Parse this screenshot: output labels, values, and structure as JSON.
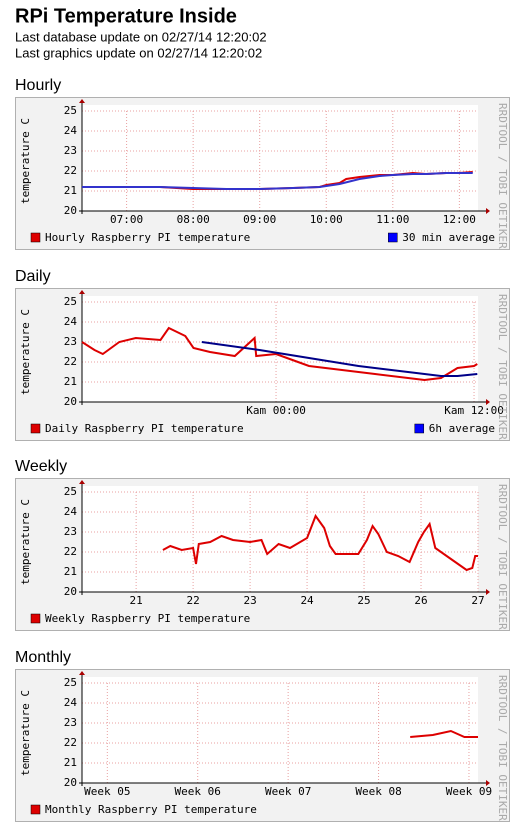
{
  "header": {
    "title": "RPi Temperature Inside",
    "lines": [
      "Last database update on 02/27/14 12:20:02",
      "Last graphics update on 02/27/14 12:20:02"
    ]
  },
  "chart_data": [
    {
      "type": "line",
      "title": "Hourly",
      "ylabel": "temperature C",
      "watermark": "RRDTOOL / TOBI OETIKER",
      "xlim": [
        6.33,
        12.28
      ],
      "xticks": [
        {
          "value": 7,
          "label": "07:00"
        },
        {
          "value": 8,
          "label": "08:00"
        },
        {
          "value": 9,
          "label": "09:00"
        },
        {
          "value": 10,
          "label": "10:00"
        },
        {
          "value": 11,
          "label": "11:00"
        },
        {
          "value": 12,
          "label": "12:00"
        }
      ],
      "ylim": [
        20,
        25
      ],
      "yticks": [
        20,
        21,
        22,
        23,
        24,
        25
      ],
      "grid": true,
      "series": [
        {
          "name": "Hourly Raspberry PI temperature",
          "color": "#dd0000",
          "x": [
            6.33,
            7.0,
            7.5,
            8.0,
            8.5,
            9.0,
            9.5,
            9.9,
            10.0,
            10.2,
            10.3,
            10.5,
            10.8,
            11.0,
            11.3,
            11.5,
            11.8,
            12.0,
            12.2
          ],
          "values": [
            21.2,
            21.2,
            21.2,
            21.1,
            21.1,
            21.1,
            21.15,
            21.2,
            21.3,
            21.4,
            21.6,
            21.7,
            21.8,
            21.8,
            21.9,
            21.85,
            21.9,
            21.9,
            21.95
          ]
        },
        {
          "name": "30 min average",
          "color": "#3333cc",
          "x": [
            6.33,
            7.0,
            7.5,
            8.0,
            8.5,
            9.0,
            9.5,
            9.9,
            10.0,
            10.2,
            10.5,
            10.8,
            11.0,
            11.3,
            11.5,
            11.8,
            12.0,
            12.2
          ],
          "values": [
            21.2,
            21.2,
            21.2,
            21.15,
            21.1,
            21.1,
            21.15,
            21.2,
            21.25,
            21.35,
            21.6,
            21.75,
            21.8,
            21.85,
            21.85,
            21.9,
            21.9,
            21.9
          ]
        }
      ]
    },
    {
      "type": "line",
      "title": "Daily",
      "ylabel": "temperature C",
      "watermark": "RRDTOOL / TOBI OETIKER",
      "xlim": [
        -11.76,
        12.24
      ],
      "xticks": [
        {
          "value": 0,
          "label": "Kam 00:00"
        },
        {
          "value": 12,
          "label": "Kam 12:00"
        }
      ],
      "ylim": [
        20,
        25
      ],
      "yticks": [
        20,
        21,
        22,
        23,
        24,
        25
      ],
      "grid": true,
      "series": [
        {
          "name": "Daily Raspberry PI temperature",
          "color": "#dd0000",
          "x": [
            -11.76,
            -11.0,
            -10.5,
            -9.5,
            -8.5,
            -7.0,
            -6.5,
            -5.5,
            -5.0,
            -4.0,
            -2.5,
            -1.3,
            -1.2,
            0,
            1,
            2,
            4,
            6,
            8,
            9,
            10,
            11,
            12,
            12.2
          ],
          "values": [
            23.0,
            22.6,
            22.4,
            23.0,
            23.2,
            23.1,
            23.7,
            23.3,
            22.7,
            22.5,
            22.3,
            23.2,
            22.3,
            22.4,
            22.1,
            21.8,
            21.6,
            21.4,
            21.2,
            21.1,
            21.2,
            21.7,
            21.8,
            21.9
          ]
        },
        {
          "name": "6h average",
          "color": "#000088",
          "x": [
            -4.5,
            -1,
            2,
            5,
            8,
            10,
            11,
            12.2
          ],
          "values": [
            23.0,
            22.6,
            22.2,
            21.8,
            21.5,
            21.3,
            21.3,
            21.4
          ]
        }
      ]
    },
    {
      "type": "line",
      "title": "Weekly",
      "ylabel": "temperature C",
      "watermark": "RRDTOOL / TOBI OETIKER",
      "xlim": [
        20.05,
        27.0
      ],
      "xticks": [
        21,
        22,
        23,
        24,
        25,
        26,
        27
      ],
      "ylim": [
        20,
        25
      ],
      "yticks": [
        20,
        21,
        22,
        23,
        24,
        25
      ],
      "grid": true,
      "series": [
        {
          "name": "Weekly Raspberry PI temperature",
          "color": "#dd0000",
          "x": [
            21.47,
            21.6,
            21.8,
            22.0,
            22.05,
            22.1,
            22.3,
            22.5,
            22.7,
            23.0,
            23.2,
            23.3,
            23.5,
            23.7,
            24.0,
            24.15,
            24.3,
            24.4,
            24.5,
            24.9,
            25.05,
            25.15,
            25.25,
            25.4,
            25.6,
            25.8,
            25.95,
            26.05,
            26.15,
            26.25,
            26.5,
            26.8,
            26.9,
            26.95,
            27.0
          ],
          "values": [
            22.1,
            22.3,
            22.1,
            22.2,
            21.4,
            22.4,
            22.5,
            22.8,
            22.6,
            22.5,
            22.6,
            21.9,
            22.4,
            22.2,
            22.7,
            23.8,
            23.2,
            22.3,
            21.9,
            21.9,
            22.6,
            23.3,
            22.9,
            22.0,
            21.8,
            21.5,
            22.5,
            23.0,
            23.4,
            22.2,
            21.7,
            21.1,
            21.2,
            21.8,
            21.8
          ]
        }
      ]
    },
    {
      "type": "line",
      "title": "Monthly",
      "ylabel": "temperature C",
      "watermark": "RRDTOOL / TOBI OETIKER",
      "xlim": [
        4.72,
        9.1
      ],
      "xticks": [
        {
          "value": 5,
          "label": "Week 05"
        },
        {
          "value": 6,
          "label": "Week 06"
        },
        {
          "value": 7,
          "label": "Week 07"
        },
        {
          "value": 8,
          "label": "Week 08"
        },
        {
          "value": 9,
          "label": "Week 09"
        }
      ],
      "ylim": [
        20,
        25
      ],
      "yticks": [
        20,
        21,
        22,
        23,
        24,
        25
      ],
      "grid": true,
      "series": [
        {
          "name": "Monthly Raspberry PI temperature",
          "color": "#dd0000",
          "x": [
            8.35,
            8.6,
            8.8,
            8.95,
            9.1
          ],
          "values": [
            22.3,
            22.4,
            22.6,
            22.3,
            22.3
          ]
        }
      ]
    }
  ]
}
